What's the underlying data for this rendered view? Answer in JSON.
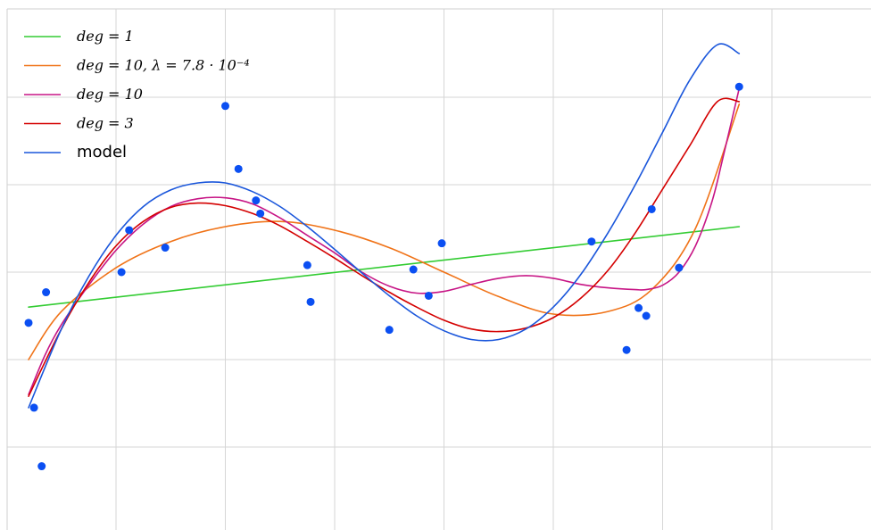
{
  "chart_data": {
    "type": "line",
    "title": "",
    "xlabel": "",
    "ylabel": "",
    "xlim": [
      -0.2,
      7.7
    ],
    "ylim": [
      -2.9,
      3.0
    ],
    "grid": true,
    "legend_position": "top-left",
    "x_gridlines": [
      1,
      2,
      3,
      4,
      5,
      6,
      7
    ],
    "y_gridlines": [
      2,
      1,
      0,
      -1,
      -2
    ],
    "series": [
      {
        "name": "deg = 1",
        "color": "#33cc33",
        "x": [
          0.2,
          6.7
        ],
        "y": [
          -0.4,
          0.52
        ]
      },
      {
        "name": "deg = 10, λ = 7.8 · 10⁻⁴",
        "color": "#f07318",
        "x": [
          0.2,
          0.5,
          1.0,
          1.5,
          2.0,
          2.5,
          3.0,
          3.5,
          4.0,
          4.5,
          5.0,
          5.5,
          5.9,
          6.3,
          6.7
        ],
        "y": [
          -1.0,
          -0.45,
          0.05,
          0.35,
          0.52,
          0.58,
          0.48,
          0.28,
          0.0,
          -0.28,
          -0.48,
          -0.45,
          -0.2,
          0.5,
          1.92
        ]
      },
      {
        "name": "deg = 10",
        "color": "#c71585",
        "x": [
          0.2,
          0.35,
          0.5,
          0.75,
          1.0,
          1.25,
          1.5,
          1.75,
          2.0,
          2.25,
          2.5,
          2.75,
          3.0,
          3.25,
          3.5,
          3.75,
          4.0,
          4.25,
          4.5,
          4.75,
          5.0,
          5.25,
          5.5,
          5.75,
          5.85,
          6.0,
          6.15,
          6.3,
          6.45,
          6.55,
          6.7
        ],
        "y": [
          -1.4,
          -0.95,
          -0.6,
          -0.15,
          0.25,
          0.55,
          0.75,
          0.84,
          0.85,
          0.78,
          0.62,
          0.42,
          0.22,
          0.0,
          -0.16,
          -0.24,
          -0.22,
          -0.14,
          -0.07,
          -0.04,
          -0.07,
          -0.14,
          -0.18,
          -0.2,
          -0.2,
          -0.15,
          0.0,
          0.3,
          0.8,
          1.3,
          2.1
        ]
      },
      {
        "name": "deg = 3",
        "color": "#d40000",
        "x": [
          0.2,
          0.5,
          0.75,
          1.0,
          1.25,
          1.5,
          1.75,
          2.0,
          2.25,
          2.5,
          2.75,
          3.0,
          3.25,
          3.5,
          3.75,
          4.0,
          4.25,
          4.5,
          4.75,
          5.0,
          5.25,
          5.5,
          5.75,
          6.0,
          6.25,
          6.5,
          6.7
        ],
        "y": [
          -1.42,
          -0.65,
          -0.12,
          0.3,
          0.58,
          0.74,
          0.79,
          0.76,
          0.67,
          0.53,
          0.35,
          0.16,
          -0.04,
          -0.23,
          -0.4,
          -0.55,
          -0.65,
          -0.68,
          -0.64,
          -0.52,
          -0.3,
          0.02,
          0.45,
          0.95,
          1.45,
          1.95,
          1.95
        ]
      },
      {
        "name": "model",
        "color": "#1a56db",
        "x": [
          0.2,
          0.5,
          0.75,
          1.0,
          1.25,
          1.5,
          1.75,
          2.0,
          2.25,
          2.5,
          2.75,
          3.0,
          3.25,
          3.5,
          3.75,
          4.0,
          4.25,
          4.5,
          4.75,
          5.0,
          5.25,
          5.5,
          5.75,
          6.0,
          6.25,
          6.5,
          6.7
        ],
        "y": [
          -1.55,
          -0.65,
          -0.05,
          0.42,
          0.75,
          0.94,
          1.02,
          1.02,
          0.92,
          0.75,
          0.52,
          0.26,
          -0.01,
          -0.27,
          -0.5,
          -0.67,
          -0.77,
          -0.77,
          -0.65,
          -0.4,
          -0.03,
          0.45,
          1.0,
          1.6,
          2.2,
          2.6,
          2.5
        ]
      }
    ],
    "points": {
      "name": "",
      "color": "#0b4ff2",
      "x": [
        0.2,
        0.25,
        0.32,
        0.36,
        1.05,
        1.12,
        1.45,
        2.0,
        2.12,
        2.28,
        2.32,
        2.75,
        2.78,
        3.5,
        3.72,
        3.86,
        3.98,
        5.35,
        5.67,
        5.78,
        5.85,
        5.9,
        6.15,
        6.7
      ],
      "y": [
        -0.58,
        -1.55,
        -2.22,
        -0.23,
        0.0,
        0.48,
        0.28,
        1.9,
        1.18,
        0.82,
        0.67,
        0.08,
        -0.34,
        -0.66,
        0.03,
        -0.27,
        0.33,
        0.35,
        -0.89,
        -0.41,
        -0.5,
        0.72,
        0.05,
        2.12
      ]
    },
    "legend": {
      "entries": [
        {
          "label": "deg = 1",
          "color": "#33cc33"
        },
        {
          "label": "deg = 10, λ = 7.8 · 10⁻⁴",
          "color": "#f07318"
        },
        {
          "label": "deg = 10",
          "color": "#c71585"
        },
        {
          "label": "deg = 3",
          "color": "#d40000"
        },
        {
          "label": "model",
          "color": "#1a56db"
        }
      ]
    }
  }
}
